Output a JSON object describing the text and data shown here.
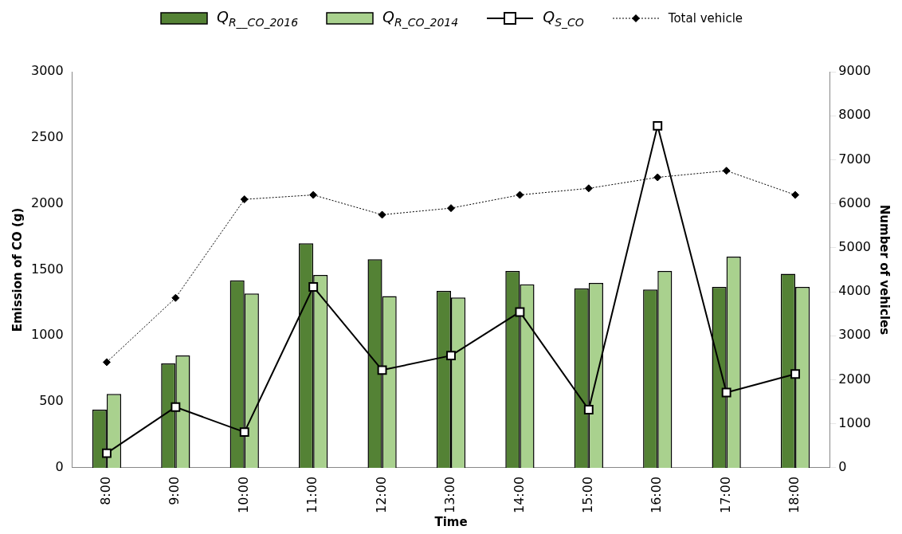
{
  "chart_data": {
    "type": "bar",
    "xlabel": "Time",
    "ylabel": "Emission of CO (g)",
    "y2label": "Number of vehicles",
    "categories": [
      "8:00",
      "9:00",
      "10:00",
      "11:00",
      "12:00",
      "13:00",
      "14:00",
      "15:00",
      "16:00",
      "17:00",
      "18:00"
    ],
    "series": [
      {
        "name": "Q$_{R__CO_2016}$",
        "color": "#548235",
        "values": [
          440,
          790,
          1420,
          1700,
          1580,
          1340,
          1490,
          1360,
          1350,
          1370,
          1470
        ]
      },
      {
        "name": "Q$_{R_CO_2014}$",
        "color": "#a9d18e",
        "values": [
          560,
          850,
          1320,
          1460,
          1300,
          1290,
          1390,
          1400,
          1490,
          1600,
          1370
        ]
      },
      {
        "name": "Q$_{S_CO}$",
        "type": "line",
        "color": "#000000",
        "marker": "square",
        "line_style": "solid",
        "values": [
          110,
          460,
          270,
          1370,
          740,
          850,
          1180,
          440,
          2590,
          570,
          710
        ]
      },
      {
        "name": "Total vehicle",
        "type": "line",
        "axis": "y2",
        "color": "#000000",
        "marker": "diamond",
        "line_style": "dotted",
        "values": [
          2400,
          3860,
          6100,
          6200,
          5750,
          5900,
          6200,
          6350,
          6600,
          6750,
          6200
        ]
      }
    ],
    "ylim": [
      0,
      3000
    ],
    "yticks": [
      0,
      500,
      1000,
      1500,
      2000,
      2500,
      3000
    ],
    "y2lim": [
      0,
      9000
    ],
    "y2ticks": [
      0,
      1000,
      2000,
      3000,
      4000,
      5000,
      6000,
      7000,
      8000,
      9000
    ],
    "grid": false,
    "legend": "top"
  }
}
